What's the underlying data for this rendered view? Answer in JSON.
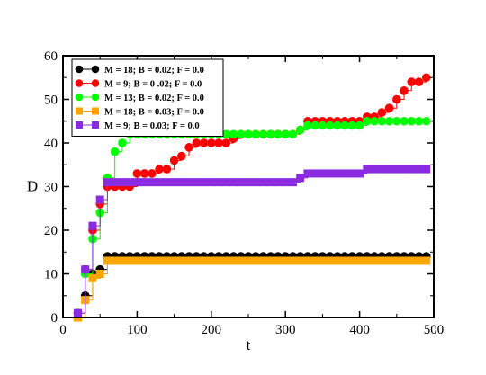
{
  "chart_data": {
    "type": "line",
    "title": "",
    "xlabel": "t",
    "ylabel": "D",
    "xlim": [
      0,
      500
    ],
    "ylim": [
      0,
      60
    ],
    "xticks": [
      0,
      100,
      200,
      300,
      400,
      500
    ],
    "yticks": [
      0,
      10,
      20,
      30,
      40,
      50,
      60
    ],
    "grid": false,
    "legend_position": "top-left",
    "series": [
      {
        "name": "M = 18; B = 0.02; F = 0.0",
        "color": "#000000",
        "marker": "circle",
        "x": [
          20,
          30,
          40,
          50,
          60,
          70,
          80,
          90,
          100,
          110,
          120,
          130,
          140,
          150,
          160,
          170,
          180,
          190,
          200,
          210,
          220,
          230,
          240,
          250,
          260,
          270,
          280,
          290,
          300,
          310,
          320,
          330,
          340,
          350,
          360,
          370,
          380,
          390,
          400,
          410,
          420,
          430,
          440,
          450,
          460,
          470,
          480,
          490
        ],
        "y": [
          1,
          5,
          10,
          11,
          14,
          14,
          14,
          14,
          14,
          14,
          14,
          14,
          14,
          14,
          14,
          14,
          14,
          14,
          14,
          14,
          14,
          14,
          14,
          14,
          14,
          14,
          14,
          14,
          14,
          14,
          14,
          14,
          14,
          14,
          14,
          14,
          14,
          14,
          14,
          14,
          14,
          14,
          14,
          14,
          14,
          14,
          14,
          14
        ]
      },
      {
        "name": "M = 9; B = 0 .02; F = 0.0",
        "color": "#ff0000",
        "marker": "circle",
        "x": [
          20,
          30,
          40,
          50,
          60,
          70,
          80,
          90,
          100,
          110,
          120,
          130,
          140,
          150,
          160,
          170,
          180,
          190,
          200,
          210,
          220,
          230,
          240,
          250,
          260,
          270,
          280,
          290,
          300,
          310,
          320,
          330,
          340,
          350,
          360,
          370,
          380,
          390,
          400,
          410,
          420,
          430,
          440,
          450,
          460,
          470,
          480,
          490
        ],
        "y": [
          1,
          11,
          20,
          26,
          30,
          30,
          30,
          30,
          33,
          33,
          33,
          34,
          34,
          36,
          37,
          39,
          40,
          40,
          40,
          40,
          40,
          41,
          42,
          42,
          42,
          42,
          42,
          42,
          42,
          42,
          43,
          45,
          45,
          45,
          45,
          45,
          45,
          45,
          45,
          46,
          46,
          47,
          48,
          50,
          52,
          54,
          54,
          55
        ]
      },
      {
        "name": "M = 13; B = 0.02; F = 0.0",
        "color": "#00ff00",
        "marker": "circle",
        "x": [
          20,
          30,
          40,
          50,
          60,
          70,
          80,
          90,
          100,
          110,
          120,
          130,
          140,
          150,
          160,
          170,
          180,
          190,
          200,
          210,
          220,
          230,
          240,
          250,
          260,
          270,
          280,
          290,
          300,
          310,
          320,
          330,
          340,
          350,
          360,
          370,
          380,
          390,
          400,
          410,
          420,
          430,
          440,
          450,
          460,
          470,
          480,
          490
        ],
        "y": [
          1,
          10,
          18,
          24,
          32,
          38,
          40,
          42,
          42,
          42,
          42,
          42,
          42,
          42,
          42,
          42,
          42,
          42,
          42,
          42,
          42,
          42,
          42,
          42,
          42,
          42,
          42,
          42,
          42,
          42,
          43,
          44,
          44,
          44,
          44,
          44,
          44,
          44,
          44,
          45,
          45,
          45,
          45,
          45,
          45,
          45,
          45,
          45
        ]
      },
      {
        "name": "M = 18; B = 0.03; F = 0.0",
        "color": "#ffa500",
        "marker": "square",
        "x": [
          20,
          30,
          40,
          50,
          60,
          70,
          80,
          90,
          100,
          110,
          120,
          130,
          140,
          150,
          160,
          170,
          180,
          190,
          200,
          210,
          220,
          230,
          240,
          250,
          260,
          270,
          280,
          290,
          300,
          310,
          320,
          330,
          340,
          350,
          360,
          370,
          380,
          390,
          400,
          410,
          420,
          430,
          440,
          450,
          460,
          470,
          480,
          490
        ],
        "y": [
          0,
          4,
          9,
          10,
          13,
          13,
          13,
          13,
          13,
          13,
          13,
          13,
          13,
          13,
          13,
          13,
          13,
          13,
          13,
          13,
          13,
          13,
          13,
          13,
          13,
          13,
          13,
          13,
          13,
          13,
          13,
          13,
          13,
          13,
          13,
          13,
          13,
          13,
          13,
          13,
          13,
          13,
          13,
          13,
          13,
          13,
          13,
          13
        ]
      },
      {
        "name": "M = 9; B = 0.03; F = 0.0",
        "color": "#8a2be2",
        "marker": "square",
        "x": [
          20,
          30,
          40,
          50,
          60,
          70,
          80,
          90,
          100,
          110,
          120,
          130,
          140,
          150,
          160,
          170,
          180,
          190,
          200,
          210,
          220,
          230,
          240,
          250,
          260,
          270,
          280,
          290,
          300,
          310,
          320,
          330,
          340,
          350,
          360,
          370,
          380,
          390,
          400,
          410,
          420,
          430,
          440,
          450,
          460,
          470,
          480,
          490
        ],
        "y": [
          1,
          11,
          21,
          27,
          31,
          31,
          31,
          31,
          31,
          31,
          31,
          31,
          31,
          31,
          31,
          31,
          31,
          31,
          31,
          31,
          31,
          31,
          31,
          31,
          31,
          31,
          31,
          31,
          31,
          31,
          32,
          33,
          33,
          33,
          33,
          33,
          33,
          33,
          33,
          34,
          34,
          34,
          34,
          34,
          34,
          34,
          34,
          34
        ]
      }
    ]
  }
}
